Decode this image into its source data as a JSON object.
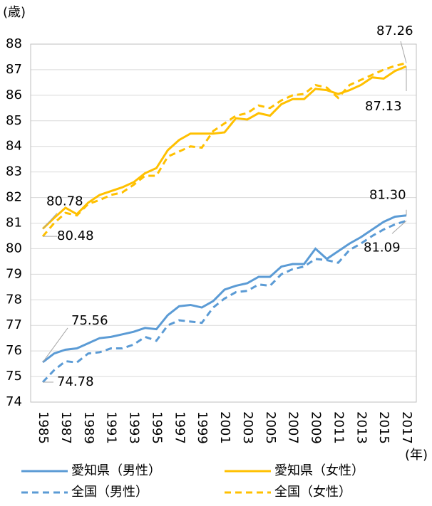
{
  "chart_data": {
    "type": "line",
    "y_axis_label": "(歳)",
    "x_axis_label": "(年)",
    "categories": [
      "1985",
      null,
      "1987",
      null,
      "1989",
      null,
      "1991",
      null,
      "1993",
      null,
      "1995",
      null,
      "1997",
      null,
      "1999",
      null,
      "2001",
      null,
      "2003",
      null,
      "2005",
      null,
      "2007",
      null,
      "2009",
      null,
      "2011",
      null,
      "2013",
      null,
      "2015",
      null,
      "2017"
    ],
    "ylim": [
      74,
      88
    ],
    "yticks": [
      74,
      75,
      76,
      77,
      78,
      79,
      80,
      81,
      82,
      83,
      84,
      85,
      86,
      87,
      88
    ],
    "grid": true,
    "series": [
      {
        "name": "愛知県（男性）",
        "color": "#5b9bd5",
        "dash": false,
        "values": [
          75.56,
          75.9,
          76.05,
          76.1,
          76.3,
          76.5,
          76.55,
          76.65,
          76.75,
          76.9,
          76.85,
          77.4,
          77.75,
          77.8,
          77.7,
          77.95,
          78.4,
          78.55,
          78.65,
          78.9,
          78.9,
          79.3,
          79.4,
          79.4,
          80.0,
          79.6,
          79.9,
          80.2,
          80.45,
          80.75,
          81.05,
          81.25,
          81.3
        ],
        "value_labels": [
          "75.56",
          null,
          null,
          null,
          null,
          null,
          null,
          null,
          null,
          null,
          null,
          null,
          null,
          null,
          null,
          null,
          null,
          null,
          null,
          null,
          null,
          null,
          null,
          null,
          null,
          null,
          null,
          null,
          null,
          null,
          null,
          null,
          "81.30"
        ]
      },
      {
        "name": "愛知県（女性）",
        "color": "#ffc000",
        "dash": false,
        "values": [
          80.78,
          81.2,
          81.6,
          81.35,
          81.8,
          82.1,
          82.25,
          82.4,
          82.6,
          82.95,
          83.15,
          83.85,
          84.25,
          84.5,
          84.5,
          84.5,
          84.55,
          85.1,
          85.05,
          85.3,
          85.2,
          85.65,
          85.85,
          85.85,
          86.25,
          86.2,
          86.05,
          86.2,
          86.4,
          86.7,
          86.65,
          86.95,
          87.13
        ],
        "value_labels": [
          "80.78",
          null,
          null,
          null,
          null,
          null,
          null,
          null,
          null,
          null,
          null,
          null,
          null,
          null,
          null,
          null,
          null,
          null,
          null,
          null,
          null,
          null,
          null,
          null,
          null,
          null,
          null,
          null,
          null,
          null,
          null,
          null,
          "87.13"
        ]
      },
      {
        "name": "全国（男性）",
        "color": "#5b9bd5",
        "dash": true,
        "values": [
          74.78,
          75.25,
          75.6,
          75.55,
          75.9,
          75.95,
          76.1,
          76.1,
          76.25,
          76.55,
          76.4,
          77.0,
          77.2,
          77.15,
          77.1,
          77.7,
          78.05,
          78.3,
          78.35,
          78.6,
          78.55,
          79.0,
          79.2,
          79.3,
          79.6,
          79.55,
          79.45,
          79.95,
          80.2,
          80.5,
          80.75,
          80.95,
          81.09
        ],
        "value_labels": [
          "74.78",
          null,
          null,
          null,
          null,
          null,
          null,
          null,
          null,
          null,
          null,
          null,
          null,
          null,
          null,
          null,
          null,
          null,
          null,
          null,
          null,
          null,
          null,
          null,
          null,
          null,
          null,
          null,
          null,
          null,
          null,
          null,
          "81.09"
        ]
      },
      {
        "name": "全国（女性）",
        "color": "#ffc000",
        "dash": true,
        "values": [
          80.48,
          81.0,
          81.4,
          81.3,
          81.75,
          81.9,
          82.1,
          82.2,
          82.5,
          82.85,
          82.85,
          83.6,
          83.8,
          84.0,
          83.95,
          84.6,
          84.9,
          85.2,
          85.3,
          85.6,
          85.5,
          85.8,
          86.0,
          86.05,
          86.4,
          86.3,
          85.9,
          86.4,
          86.6,
          86.8,
          87.0,
          87.15,
          87.26
        ],
        "value_labels": [
          "80.48",
          null,
          null,
          null,
          null,
          null,
          null,
          null,
          null,
          null,
          null,
          null,
          null,
          null,
          null,
          null,
          null,
          null,
          null,
          null,
          null,
          null,
          null,
          null,
          null,
          null,
          null,
          null,
          null,
          null,
          null,
          null,
          "87.26"
        ]
      }
    ]
  }
}
